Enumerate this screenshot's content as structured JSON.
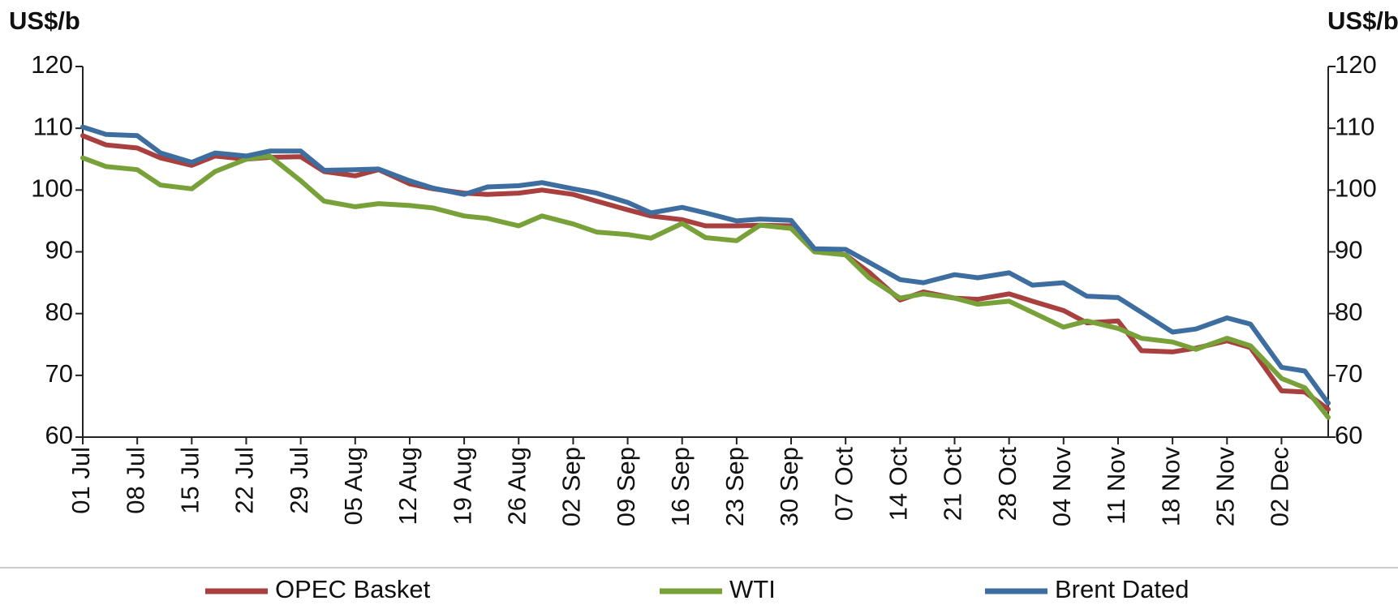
{
  "chart_data": {
    "type": "line",
    "y_label": "US$/b",
    "y2_label": "US$/b",
    "x": [
      "01 Jul",
      "04 Jul",
      "08 Jul",
      "11 Jul",
      "15 Jul",
      "18 Jul",
      "22 Jul",
      "25 Jul",
      "29 Jul",
      "01 Aug",
      "05 Aug",
      "08 Aug",
      "12 Aug",
      "15 Aug",
      "19 Aug",
      "22 Aug",
      "26 Aug",
      "29 Aug",
      "02 Sep",
      "05 Sep",
      "09 Sep",
      "12 Sep",
      "16 Sep",
      "19 Sep",
      "23 Sep",
      "26 Sep",
      "30 Sep",
      "03 Oct",
      "07 Oct",
      "10 Oct",
      "14 Oct",
      "17 Oct",
      "21 Oct",
      "24 Oct",
      "28 Oct",
      "31 Oct",
      "04 Nov",
      "07 Nov",
      "11 Nov",
      "14 Nov",
      "18 Nov",
      "21 Nov",
      "25 Nov",
      "28 Nov",
      "02 Dec",
      "05 Dec",
      "08 Dec"
    ],
    "series": [
      {
        "name": "OPEC Basket",
        "color": "#a8403f",
        "values": [
          108.8,
          107.3,
          106.8,
          105.2,
          104,
          105.5,
          105,
          105.3,
          105.4,
          103,
          102.3,
          103.3,
          101,
          100.2,
          99.5,
          99.3,
          99.5,
          100,
          99.3,
          98.2,
          96.8,
          95.8,
          95.2,
          94.2,
          94.2,
          94.3,
          94.2,
          90.2,
          89.5,
          86.7,
          82.2,
          83.5,
          82.5,
          82.3,
          83.2,
          82,
          80.5,
          78.5,
          78.8,
          74,
          73.8,
          74.4,
          75.6,
          74.5,
          67.5,
          67.3,
          64.5
        ]
      },
      {
        "name": "WTI",
        "color": "#78a13a",
        "values": [
          105.2,
          103.8,
          103.3,
          100.8,
          100.2,
          103,
          105,
          105.5,
          101.5,
          98.2,
          97.3,
          97.8,
          97.5,
          97.1,
          95.8,
          95.4,
          94.2,
          95.8,
          94.5,
          93.2,
          92.8,
          92.2,
          94.6,
          92.3,
          91.8,
          94.3,
          93.8,
          90,
          89.5,
          85.8,
          82.5,
          83.2,
          82.5,
          81.5,
          82,
          80.2,
          77.8,
          78.8,
          77.6,
          76,
          75.4,
          74.2,
          76,
          74.8,
          69.5,
          68,
          63.2
        ]
      },
      {
        "name": "Brent Dated",
        "color": "#3e6e9f",
        "values": [
          110.2,
          109,
          108.8,
          106,
          104.5,
          106,
          105.5,
          106.3,
          106.3,
          103.2,
          103.3,
          103.4,
          101.5,
          100.3,
          99.3,
          100.5,
          100.7,
          101.2,
          100.2,
          99.5,
          98,
          96.3,
          97.2,
          96.3,
          95,
          95.3,
          95.1,
          90.5,
          90.4,
          88.3,
          85.5,
          85,
          86.3,
          85.8,
          86.6,
          84.6,
          85,
          82.8,
          82.6,
          80.2,
          77,
          77.5,
          79.3,
          78.3,
          71.3,
          70.7,
          65.5
        ]
      }
    ],
    "xlim": [
      "01 Jul",
      "08 Dec"
    ],
    "xticks": [
      "01 Jul",
      "08 Jul",
      "15 Jul",
      "22 Jul",
      "29 Jul",
      "05 Aug",
      "12 Aug",
      "19 Aug",
      "26 Aug",
      "02 Sep",
      "09 Sep",
      "16 Sep",
      "23 Sep",
      "30 Sep",
      "07 Oct",
      "14 Oct",
      "21 Oct",
      "28 Oct",
      "04 Nov",
      "11 Nov",
      "18 Nov",
      "25 Nov",
      "02 Dec"
    ],
    "ylim": [
      60,
      120
    ],
    "yticks": [
      60,
      70,
      80,
      90,
      100,
      110,
      120
    ],
    "y2lim": [
      60,
      120
    ],
    "y2ticks": [
      60,
      70,
      80,
      90,
      100,
      110,
      120
    ],
    "grid": false,
    "legend": "bottom"
  }
}
